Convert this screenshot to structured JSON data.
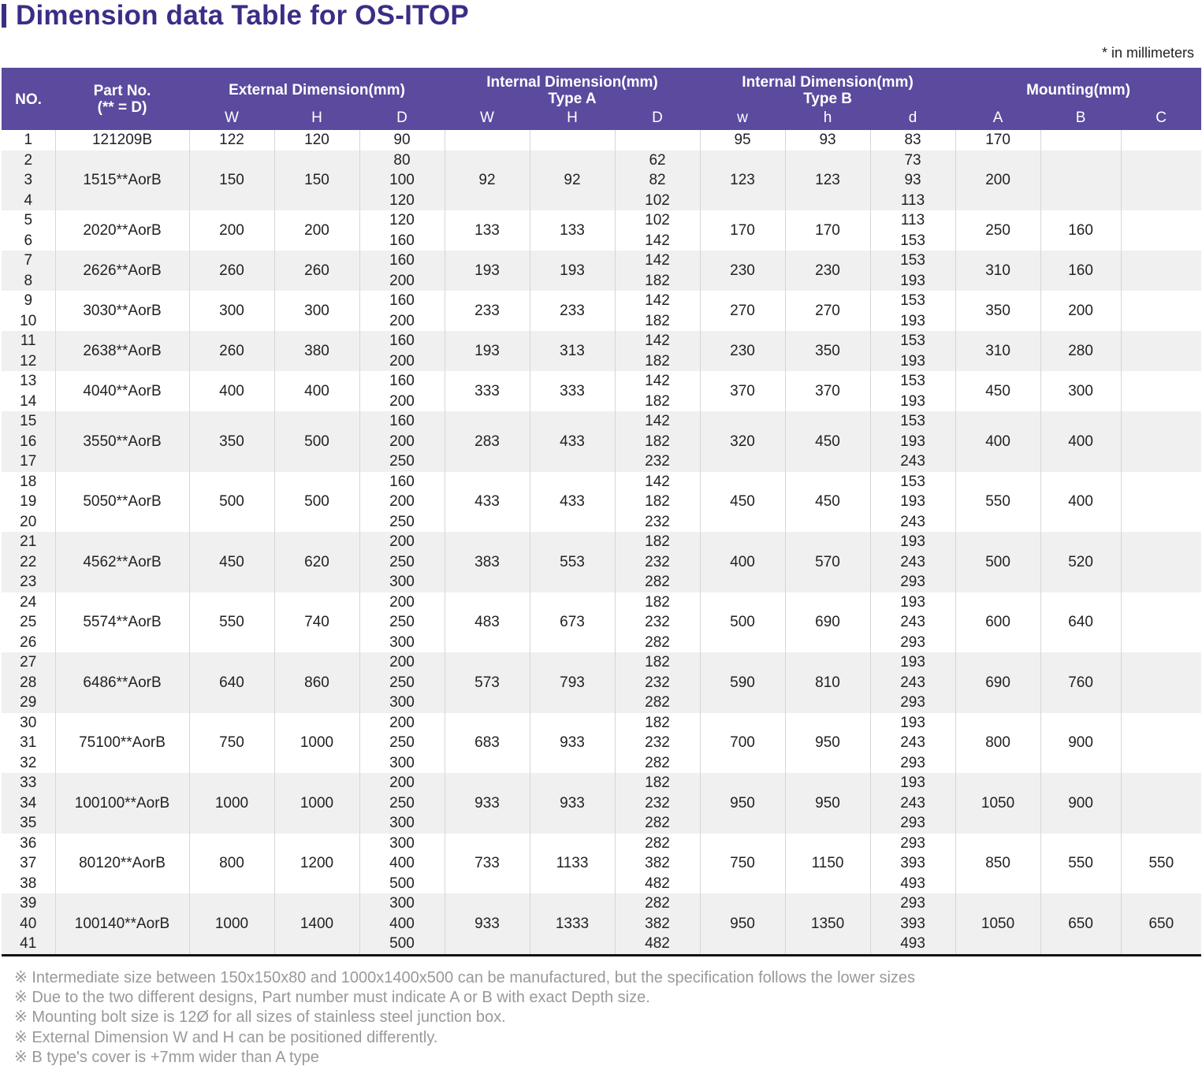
{
  "title": "Dimension data Table for OS-ITOP",
  "unit_note": "* in millimeters",
  "header": {
    "no": "NO.",
    "part_no": "Part No.",
    "part_no_sub": "(** = D)",
    "external": "External Dimension(mm)",
    "internal_a": "Internal Dimension(mm)",
    "internal_a_sub": "Type A",
    "internal_b": "Internal Dimension(mm)",
    "internal_b_sub": "Type B",
    "mounting": "Mounting(mm)",
    "cols": [
      "W",
      "H",
      "D",
      "W",
      "H",
      "D",
      "w",
      "h",
      "d",
      "A",
      "B",
      "C"
    ]
  },
  "rows": [
    {
      "no": [
        "1"
      ],
      "part": "121209B",
      "ew": "122",
      "eh": "120",
      "ed": [
        "90"
      ],
      "aw": "",
      "ah": "",
      "ad": [
        ""
      ],
      "bw": "95",
      "bh": "93",
      "bd": [
        "83"
      ],
      "ma": "170",
      "mb": "",
      "mc": ""
    },
    {
      "no": [
        "2",
        "3",
        "4"
      ],
      "part": "1515**AorB",
      "ew": "150",
      "eh": "150",
      "ed": [
        "80",
        "100",
        "120"
      ],
      "aw": "92",
      "ah": "92",
      "ad": [
        "62",
        "82",
        "102"
      ],
      "bw": "123",
      "bh": "123",
      "bd": [
        "73",
        "93",
        "113"
      ],
      "ma": "200",
      "mb": "",
      "mc": ""
    },
    {
      "no": [
        "5",
        "6"
      ],
      "part": "2020**AorB",
      "ew": "200",
      "eh": "200",
      "ed": [
        "120",
        "160"
      ],
      "aw": "133",
      "ah": "133",
      "ad": [
        "102",
        "142"
      ],
      "bw": "170",
      "bh": "170",
      "bd": [
        "113",
        "153"
      ],
      "ma": "250",
      "mb": "160",
      "mc": ""
    },
    {
      "no": [
        "7",
        "8"
      ],
      "part": "2626**AorB",
      "ew": "260",
      "eh": "260",
      "ed": [
        "160",
        "200"
      ],
      "aw": "193",
      "ah": "193",
      "ad": [
        "142",
        "182"
      ],
      "bw": "230",
      "bh": "230",
      "bd": [
        "153",
        "193"
      ],
      "ma": "310",
      "mb": "160",
      "mc": ""
    },
    {
      "no": [
        "9",
        "10"
      ],
      "part": "3030**AorB",
      "ew": "300",
      "eh": "300",
      "ed": [
        "160",
        "200"
      ],
      "aw": "233",
      "ah": "233",
      "ad": [
        "142",
        "182"
      ],
      "bw": "270",
      "bh": "270",
      "bd": [
        "153",
        "193"
      ],
      "ma": "350",
      "mb": "200",
      "mc": ""
    },
    {
      "no": [
        "11",
        "12"
      ],
      "part": "2638**AorB",
      "ew": "260",
      "eh": "380",
      "ed": [
        "160",
        "200"
      ],
      "aw": "193",
      "ah": "313",
      "ad": [
        "142",
        "182"
      ],
      "bw": "230",
      "bh": "350",
      "bd": [
        "153",
        "193"
      ],
      "ma": "310",
      "mb": "280",
      "mc": ""
    },
    {
      "no": [
        "13",
        "14"
      ],
      "part": "4040**AorB",
      "ew": "400",
      "eh": "400",
      "ed": [
        "160",
        "200"
      ],
      "aw": "333",
      "ah": "333",
      "ad": [
        "142",
        "182"
      ],
      "bw": "370",
      "bh": "370",
      "bd": [
        "153",
        "193"
      ],
      "ma": "450",
      "mb": "300",
      "mc": ""
    },
    {
      "no": [
        "15",
        "16",
        "17"
      ],
      "part": "3550**AorB",
      "ew": "350",
      "eh": "500",
      "ed": [
        "160",
        "200",
        "250"
      ],
      "aw": "283",
      "ah": "433",
      "ad": [
        "142",
        "182",
        "232"
      ],
      "bw": "320",
      "bh": "450",
      "bd": [
        "153",
        "193",
        "243"
      ],
      "ma": "400",
      "mb": "400",
      "mc": ""
    },
    {
      "no": [
        "18",
        "19",
        "20"
      ],
      "part": "5050**AorB",
      "ew": "500",
      "eh": "500",
      "ed": [
        "160",
        "200",
        "250"
      ],
      "aw": "433",
      "ah": "433",
      "ad": [
        "142",
        "182",
        "232"
      ],
      "bw": "450",
      "bh": "450",
      "bd": [
        "153",
        "193",
        "243"
      ],
      "ma": "550",
      "mb": "400",
      "mc": ""
    },
    {
      "no": [
        "21",
        "22",
        "23"
      ],
      "part": "4562**AorB",
      "ew": "450",
      "eh": "620",
      "ed": [
        "200",
        "250",
        "300"
      ],
      "aw": "383",
      "ah": "553",
      "ad": [
        "182",
        "232",
        "282"
      ],
      "bw": "400",
      "bh": "570",
      "bd": [
        "193",
        "243",
        "293"
      ],
      "ma": "500",
      "mb": "520",
      "mc": ""
    },
    {
      "no": [
        "24",
        "25",
        "26"
      ],
      "part": "5574**AorB",
      "ew": "550",
      "eh": "740",
      "ed": [
        "200",
        "250",
        "300"
      ],
      "aw": "483",
      "ah": "673",
      "ad": [
        "182",
        "232",
        "282"
      ],
      "bw": "500",
      "bh": "690",
      "bd": [
        "193",
        "243",
        "293"
      ],
      "ma": "600",
      "mb": "640",
      "mc": ""
    },
    {
      "no": [
        "27",
        "28",
        "29"
      ],
      "part": "6486**AorB",
      "ew": "640",
      "eh": "860",
      "ed": [
        "200",
        "250",
        "300"
      ],
      "aw": "573",
      "ah": "793",
      "ad": [
        "182",
        "232",
        "282"
      ],
      "bw": "590",
      "bh": "810",
      "bd": [
        "193",
        "243",
        "293"
      ],
      "ma": "690",
      "mb": "760",
      "mc": ""
    },
    {
      "no": [
        "30",
        "31",
        "32"
      ],
      "part": "75100**AorB",
      "ew": "750",
      "eh": "1000",
      "ed": [
        "200",
        "250",
        "300"
      ],
      "aw": "683",
      "ah": "933",
      "ad": [
        "182",
        "232",
        "282"
      ],
      "bw": "700",
      "bh": "950",
      "bd": [
        "193",
        "243",
        "293"
      ],
      "ma": "800",
      "mb": "900",
      "mc": ""
    },
    {
      "no": [
        "33",
        "34",
        "35"
      ],
      "part": "100100**AorB",
      "ew": "1000",
      "eh": "1000",
      "ed": [
        "200",
        "250",
        "300"
      ],
      "aw": "933",
      "ah": "933",
      "ad": [
        "182",
        "232",
        "282"
      ],
      "bw": "950",
      "bh": "950",
      "bd": [
        "193",
        "243",
        "293"
      ],
      "ma": "1050",
      "mb": "900",
      "mc": ""
    },
    {
      "no": [
        "36",
        "37",
        "38"
      ],
      "part": "80120**AorB",
      "ew": "800",
      "eh": "1200",
      "ed": [
        "300",
        "400",
        "500"
      ],
      "aw": "733",
      "ah": "1133",
      "ad": [
        "282",
        "382",
        "482"
      ],
      "bw": "750",
      "bh": "1150",
      "bd": [
        "293",
        "393",
        "493"
      ],
      "ma": "850",
      "mb": "550",
      "mc": "550"
    },
    {
      "no": [
        "39",
        "40",
        "41"
      ],
      "part": "100140**AorB",
      "ew": "1000",
      "eh": "1400",
      "ed": [
        "300",
        "400",
        "500"
      ],
      "aw": "933",
      "ah": "1333",
      "ad": [
        "282",
        "382",
        "482"
      ],
      "bw": "950",
      "bh": "1350",
      "bd": [
        "293",
        "393",
        "493"
      ],
      "ma": "1050",
      "mb": "650",
      "mc": "650"
    }
  ],
  "notes": [
    "※ Intermediate size between 150x150x80 and 1000x1400x500 can be manufactured, but the specification follows the lower sizes",
    "※ Due to the two different designs, Part number must indicate A or B with exact Depth size.",
    "※ Mounting bolt size is 12Ø for all sizes of stainless steel junction box.",
    "※ External Dimension W and H can be positioned differently.",
    "※ B type's cover is +7mm wider than A type"
  ],
  "colors": {
    "accent": "#3b2d86",
    "header_bg": "#5b4a9e",
    "alt_row": "#f0f0f0",
    "note_text": "#999999"
  }
}
